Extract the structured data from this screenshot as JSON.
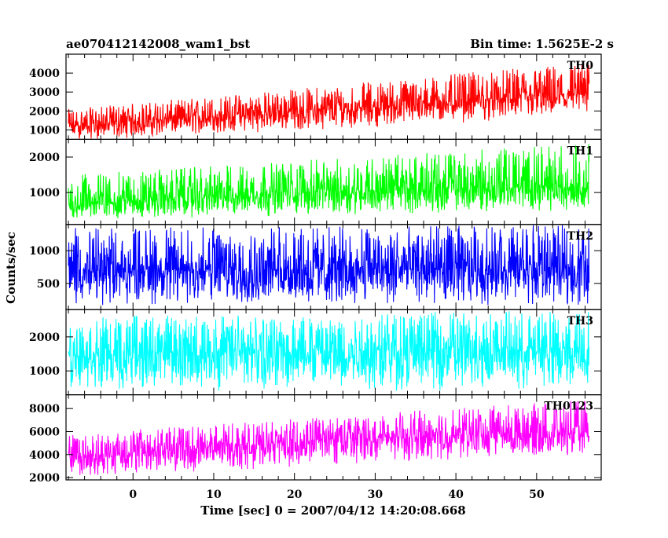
{
  "chart_data": {
    "type": "line",
    "title": "ae070412142008_wam1_bst",
    "bin_time_label": "Bin time: 1.5625E-2 s",
    "xlabel": "Time [sec] 0 = 2007/04/12 14:20:08.668",
    "ylabel": "Counts/sec",
    "xlim": [
      -8.3,
      58.0
    ],
    "x_ticks": [
      0,
      10,
      20,
      30,
      40,
      50
    ],
    "data_x_range": [
      -8.0,
      56.5
    ],
    "panels": [
      {
        "name": "TH0",
        "color": "#ff0000",
        "ylim": [
          500,
          5000
        ],
        "y_ticks": [
          1000,
          2000,
          3000,
          4000
        ],
        "trend_start": 1200,
        "trend_mid": 2100,
        "trend_end": 2900,
        "low_start": 400,
        "low_end": 1650,
        "high_start": 2100,
        "high_end": 4600
      },
      {
        "name": "TH1",
        "color": "#00ff00",
        "ylim": [
          100,
          2500
        ],
        "y_ticks": [
          1000,
          2000
        ],
        "trend_start": 700,
        "trend_mid": 1050,
        "trend_end": 1150,
        "low_start": 200,
        "low_end": 500,
        "high_start": 1500,
        "high_end": 2400
      },
      {
        "name": "TH2",
        "color": "#0000ff",
        "ylim": [
          100,
          1400
        ],
        "y_ticks": [
          500,
          1000
        ],
        "trend_start": 700,
        "trend_mid": 720,
        "trend_end": 720,
        "low_start": 150,
        "low_end": 150,
        "high_start": 1350,
        "high_end": 1400
      },
      {
        "name": "TH3",
        "color": "#00ffff",
        "ylim": [
          300,
          2800
        ],
        "y_ticks": [
          1000,
          2000
        ],
        "trend_start": 1500,
        "trend_mid": 1600,
        "trend_end": 1600,
        "low_start": 400,
        "low_end": 400,
        "high_start": 2600,
        "high_end": 2800
      },
      {
        "name": "TH0123",
        "color": "#ff00ff",
        "ylim": [
          1800,
          9200
        ],
        "y_ticks": [
          2000,
          4000,
          6000,
          8000
        ],
        "trend_start": 3800,
        "trend_mid": 5300,
        "trend_end": 6000,
        "low_start": 2000,
        "low_end": 4000,
        "high_start": 5800,
        "high_end": 8800
      }
    ]
  }
}
